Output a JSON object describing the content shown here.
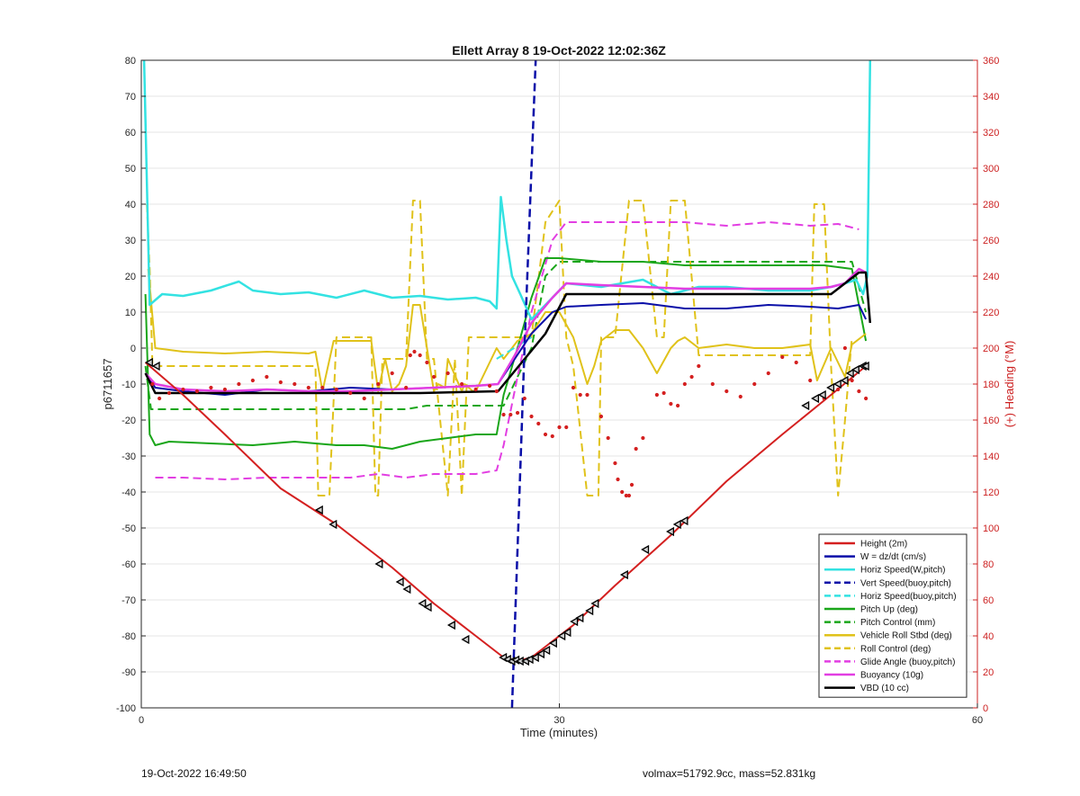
{
  "chart_data": {
    "type": "line",
    "title": "Ellett Array 8 19-Oct-2022 12:02:36Z",
    "xlabel": "Time (minutes)",
    "ylabel_left": "p6711657",
    "ylabel_right": "(+) Heading (°M)",
    "xlim": [
      0,
      60
    ],
    "ylim_left": [
      -100,
      80
    ],
    "ylim_right": [
      0,
      360
    ],
    "x_ticks": [
      0,
      30,
      60
    ],
    "y_ticks_left": [
      -100,
      -90,
      -80,
      -70,
      -60,
      -50,
      -40,
      -30,
      -20,
      -10,
      0,
      10,
      20,
      30,
      40,
      50,
      60,
      70,
      80
    ],
    "y_ticks_right": [
      0,
      20,
      40,
      60,
      80,
      100,
      120,
      140,
      160,
      180,
      200,
      220,
      240,
      260,
      280,
      300,
      320,
      340,
      360
    ],
    "grid": true,
    "legend_position": "bottom-right",
    "colors": {
      "red": "#d42020",
      "blue": "#0a0fa8",
      "cyan": "#33e2e2",
      "green": "#1aa61a",
      "yellow": "#e0c21a",
      "magenta": "#e23ee2",
      "black": "#000000",
      "axis_right": "#cc2020"
    },
    "series": [
      {
        "name": "Height (2m)",
        "color": "red",
        "dash": false,
        "width": 2,
        "x": [
          0.3,
          3,
          6,
          10,
          14,
          18,
          21,
          24,
          26,
          27,
          28,
          29,
          31,
          34,
          38,
          42,
          46,
          49.5,
          52
        ],
        "y": [
          -4,
          -13,
          -24,
          -39,
          -49,
          -61,
          -71,
          -80,
          -86,
          -87,
          -86,
          -83,
          -77,
          -66,
          -52,
          -37,
          -24,
          -13,
          -5
        ]
      },
      {
        "name": "W = dz/dt (cm/s)",
        "color": "blue",
        "dash": false,
        "width": 2,
        "x": [
          0.3,
          1,
          3,
          6,
          9,
          12,
          15,
          18,
          21,
          24,
          25.6,
          26.8,
          28,
          29.5,
          30.5,
          33,
          36,
          39,
          42,
          45,
          48,
          50,
          51.5,
          52
        ],
        "y": [
          -7,
          -11,
          -12,
          -13,
          -11.5,
          -12,
          -11,
          -11.5,
          -11,
          -10.5,
          -10,
          -3,
          4,
          10,
          11.5,
          12,
          12.5,
          11,
          11,
          12,
          11.5,
          11,
          12,
          8
        ]
      },
      {
        "name": "Horiz Speed(W,pitch)",
        "color": "cyan",
        "dash": false,
        "width": 2.5,
        "x": [
          0.2,
          0.6,
          1.5,
          3,
          5,
          7,
          8,
          10,
          12,
          14,
          16,
          18,
          20,
          22,
          24,
          25,
          25.5,
          25.8,
          26.2,
          26.6,
          27.2,
          28,
          29,
          30.5,
          33,
          36,
          38,
          40,
          42,
          45,
          48,
          49.5,
          50.5,
          51.3,
          51.8,
          52.1,
          52.3
        ],
        "y": [
          80,
          12,
          15,
          14.5,
          16,
          18.5,
          16,
          15,
          15.5,
          14,
          16,
          14,
          14.5,
          13.5,
          14,
          13,
          11,
          42,
          30,
          20,
          15,
          8,
          12,
          18,
          17,
          19,
          15,
          17,
          17,
          16,
          16,
          17,
          18,
          19,
          15,
          20,
          80
        ]
      },
      {
        "name": "Vert Speed(buoy,pitch)",
        "color": "blue",
        "dash": true,
        "width": 2.5,
        "x": [
          26.6,
          27.5,
          28.3
        ],
        "y": [
          -100,
          0,
          80
        ]
      },
      {
        "name": "Horiz Speed(buoy,pitch)",
        "color": "cyan",
        "dash": true,
        "width": 2,
        "x": [
          25.5,
          28
        ],
        "y": [
          -3,
          3
        ]
      },
      {
        "name": "Pitch Up (deg)",
        "color": "green",
        "dash": false,
        "width": 2,
        "x": [
          0.3,
          0.6,
          1,
          2,
          5,
          8,
          11,
          14,
          16,
          18,
          19,
          20,
          22,
          24,
          25.5,
          26,
          27,
          28,
          29,
          30,
          33,
          36,
          39,
          42,
          46,
          49,
          51,
          52
        ],
        "y": [
          15,
          -24,
          -27,
          -26,
          -26.5,
          -27,
          -26,
          -27,
          -27,
          -28,
          -27,
          -26,
          -25,
          -24,
          -24,
          -13,
          0,
          14,
          25,
          25,
          24,
          24,
          23,
          23,
          23,
          23,
          22,
          2
        ]
      },
      {
        "name": "Pitch Control (mm)",
        "color": "green",
        "dash": true,
        "width": 2,
        "x": [
          0.3,
          0.7,
          1.5,
          8,
          13,
          18.5,
          19,
          20.5,
          21,
          26,
          28,
          29,
          30,
          39,
          45,
          51,
          52
        ],
        "y": [
          -5,
          -17,
          -17,
          -17,
          -17,
          -17,
          -17,
          -16,
          -16,
          -16,
          0,
          20,
          24,
          24,
          24,
          24,
          10
        ]
      },
      {
        "name": "Vehicle Roll Stbd (deg)",
        "color": "yellow",
        "dash": false,
        "width": 2,
        "x": [
          0.5,
          1,
          3,
          6,
          9,
          12,
          12.5,
          13,
          13.8,
          14,
          16.5,
          17,
          17.5,
          18,
          18.5,
          19,
          19.5,
          20,
          21,
          21.3,
          21.8,
          22,
          23,
          23.2,
          23.8,
          24,
          25.5,
          26,
          27,
          28,
          29,
          30,
          31,
          32,
          32.5,
          33,
          34,
          35,
          36,
          37,
          38,
          38.5,
          39,
          40,
          42,
          44,
          46,
          48,
          48.5,
          49.5,
          50.5,
          51,
          52
        ],
        "y": [
          22,
          0,
          -1,
          -1.5,
          -1,
          -1.5,
          -1,
          -12,
          2,
          2,
          2,
          -12,
          -3,
          -12,
          -10,
          -5,
          12,
          12,
          -12,
          -10,
          -11,
          -3,
          -12,
          -10,
          -12,
          -12,
          0,
          -3,
          2,
          4,
          10,
          10,
          3,
          -10,
          -5,
          2,
          5,
          5,
          0,
          -7,
          0,
          2,
          3,
          0,
          1,
          0,
          0,
          1,
          -9,
          0,
          -8,
          1,
          4
        ]
      },
      {
        "name": "Roll Control (deg)",
        "color": "yellow",
        "dash": true,
        "width": 2,
        "x": [
          0.4,
          0.6,
          0.8,
          1.5,
          6,
          12,
          12.5,
          12.7,
          13.5,
          14,
          16.5,
          16.8,
          17,
          17.3,
          19,
          19.5,
          20,
          20.5,
          21,
          22,
          22.5,
          23,
          23.5,
          26,
          27,
          28,
          29,
          30,
          30.5,
          31,
          32,
          32.8,
          33,
          34,
          35,
          36,
          37,
          37.5,
          38,
          39,
          40,
          45,
          48,
          48.3,
          49,
          49.5,
          50,
          50.5,
          51
        ],
        "y": [
          40,
          22,
          -5,
          -5,
          -5,
          -5,
          -5,
          -41,
          -41,
          3,
          3,
          -41,
          -41,
          -3,
          -3,
          41,
          41,
          -3,
          -3,
          -41,
          -3,
          -41,
          3,
          3,
          3,
          3,
          35,
          41,
          3,
          -5,
          -41,
          -41,
          3,
          3,
          41,
          41,
          3,
          3,
          41,
          41,
          -2,
          -2,
          -2,
          40,
          40,
          -5,
          -41,
          -20,
          3
        ]
      },
      {
        "name": "Glide Angle (buoy,pitch)",
        "color": "magenta",
        "dash": true,
        "width": 2,
        "x": [
          1,
          3,
          6,
          9,
          12,
          15,
          17,
          19,
          21,
          24,
          25.5,
          26,
          27,
          28,
          29.5,
          30.5,
          33,
          36,
          39,
          42,
          45,
          48,
          50,
          51.5
        ],
        "y": [
          -36,
          -36,
          -36.5,
          -36,
          -36,
          -36,
          -35,
          -36,
          -35,
          -35,
          -34,
          -27,
          -8,
          10,
          30,
          35,
          35,
          35,
          35,
          34,
          35,
          34,
          34.5,
          33
        ]
      },
      {
        "name": "Buoyancy (10g)",
        "color": "magenta",
        "dash": false,
        "width": 2.5,
        "x": [
          0.3,
          1,
          3,
          6,
          9,
          12,
          15,
          18,
          21,
          24,
          25.6,
          26.8,
          28,
          29.5,
          30.5,
          33,
          36,
          39,
          42,
          45,
          48,
          49.5,
          50.5,
          51.5,
          52
        ],
        "y": [
          -7,
          -10,
          -11.5,
          -12,
          -11.5,
          -12,
          -12,
          -11.5,
          -11,
          -10.5,
          -10,
          -2,
          7,
          14,
          18,
          17.5,
          17,
          16.5,
          16.5,
          16.5,
          16.5,
          17,
          18,
          22,
          21
        ]
      },
      {
        "name": "VBD (10 cc)",
        "color": "black",
        "dash": false,
        "width": 2.5,
        "x": [
          0.3,
          1,
          5,
          10,
          15,
          20,
          25.6,
          29,
          30.5,
          40,
          49.5,
          50.5,
          51.5,
          52,
          52.3
        ],
        "y": [
          -7,
          -12.5,
          -12.5,
          -12.5,
          -12.5,
          -12.5,
          -12,
          4,
          15,
          15,
          15,
          18,
          21,
          21,
          7
        ]
      }
    ],
    "heading_points": {
      "name": "Heading",
      "color": "red",
      "x": [
        0.8,
        1.3,
        2,
        3,
        4,
        5,
        6,
        7,
        8,
        9,
        10,
        11,
        12,
        13,
        14,
        15,
        16,
        17,
        18,
        19,
        19.3,
        19.6,
        20,
        20.5,
        21,
        22,
        23,
        24,
        25,
        25.5,
        26,
        26.5,
        27,
        27.5,
        28,
        28.5,
        29,
        29.5,
        30,
        30.5,
        31,
        31.5,
        32,
        33,
        33.5,
        34,
        34.2,
        34.5,
        34.8,
        35,
        35.2,
        35.5,
        36,
        37,
        37.5,
        38,
        38.5,
        39,
        39.5,
        40,
        41,
        42,
        43,
        44,
        45,
        46,
        47,
        48,
        49,
        50,
        50.5,
        51,
        51.5,
        52
      ],
      "y": [
        180,
        172,
        175,
        177,
        176,
        178,
        177,
        180,
        182,
        184,
        181,
        180,
        178,
        178,
        177,
        175,
        172,
        180,
        186,
        178,
        196,
        198,
        196,
        192,
        184,
        186,
        180,
        177,
        179,
        176,
        163,
        163,
        164,
        172,
        162,
        158,
        152,
        151,
        156,
        156,
        178,
        174,
        174,
        162,
        150,
        136,
        127,
        120,
        118,
        118,
        124,
        144,
        150,
        174,
        175,
        169,
        168,
        180,
        184,
        190,
        180,
        176,
        173,
        180,
        186,
        195,
        192,
        182,
        172,
        177,
        200,
        182,
        176,
        172
      ]
    },
    "height_markers": {
      "x": [
        0.6,
        1.1,
        12.8,
        13.8,
        17.1,
        18.6,
        19.1,
        20.2,
        20.6,
        22.3,
        23.3,
        26.0,
        26.3,
        26.6,
        26.9,
        27.2,
        27.6,
        27.9,
        28.3,
        28.7,
        29.1,
        29.6,
        30.2,
        30.6,
        31.1,
        31.5,
        32.2,
        32.6,
        34.7,
        36.2,
        38.0,
        38.5,
        39.0,
        47.7,
        48.4,
        48.9,
        49.5,
        50.0,
        50.5,
        50.9,
        51.3,
        51.8,
        52.0
      ],
      "y": [
        -4,
        -5,
        -45,
        -49,
        -60,
        -65,
        -67,
        -71,
        -72,
        -77,
        -81,
        -86,
        -86.5,
        -87,
        -86.7,
        -87,
        -87,
        -86.5,
        -86,
        -85,
        -84,
        -82,
        -80,
        -79,
        -76,
        -75,
        -73,
        -71,
        -63,
        -56,
        -51,
        -49,
        -48,
        -16,
        -14,
        -13,
        -11,
        -10,
        -9,
        -7,
        -6,
        -5,
        -5
      ]
    },
    "footer_left": "19-Oct-2022 16:49:50",
    "footer_right": "volmax=51792.9cc, mass=52.831kg"
  }
}
